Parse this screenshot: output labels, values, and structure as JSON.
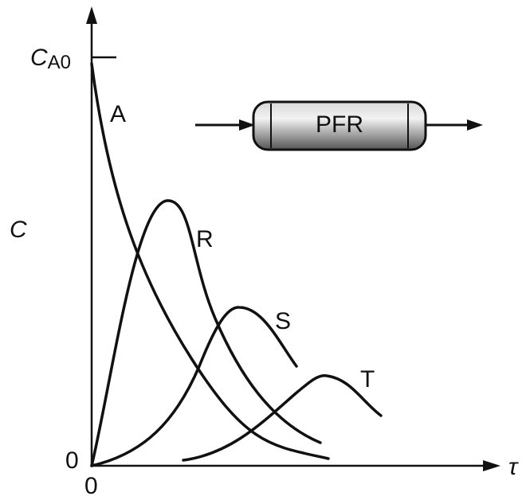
{
  "y_axis": {
    "label": "C",
    "tick_label": "C",
    "tick_subscript": "A0",
    "origin_label": "0"
  },
  "x_axis": {
    "label": "τ",
    "origin_label": "0"
  },
  "curves": [
    {
      "label": "A"
    },
    {
      "label": "R"
    },
    {
      "label": "S"
    },
    {
      "label": "T"
    }
  ],
  "reactor": {
    "label": "PFR"
  }
}
